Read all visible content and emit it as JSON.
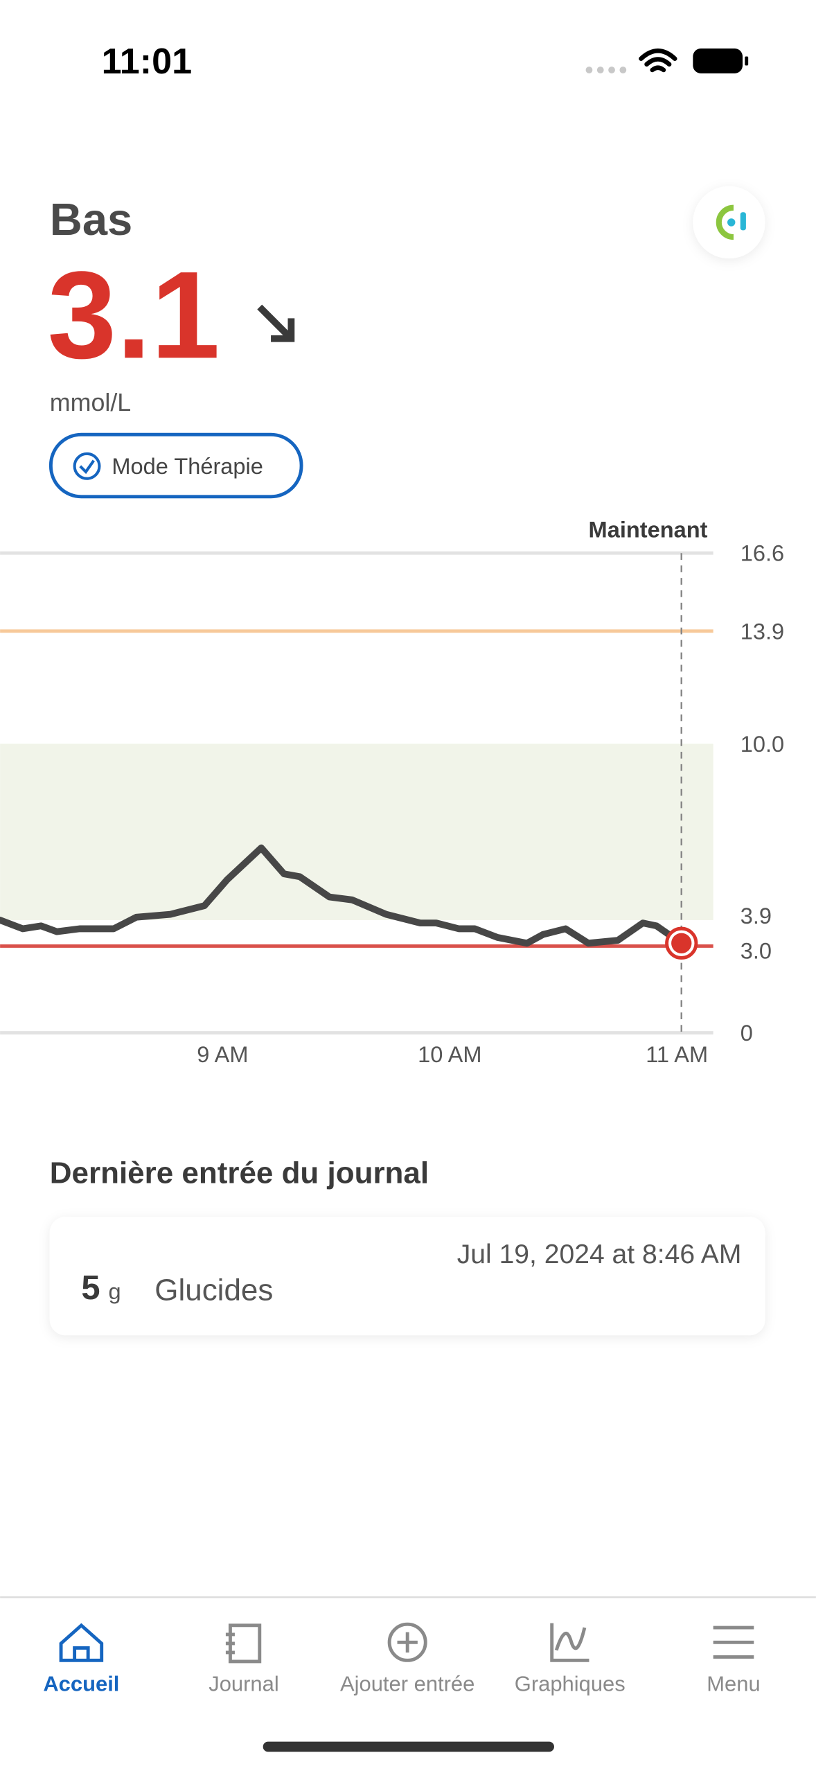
{
  "status_bar": {
    "time": "11:01"
  },
  "header": {
    "status": "Bas",
    "reading": "3.1",
    "unit": "mmol/L",
    "mode": "Mode Thérapie"
  },
  "chart_data": {
    "type": "line",
    "now_label": "Maintenant",
    "x": [
      8.02,
      8.12,
      8.2,
      8.27,
      8.37,
      8.52,
      8.62,
      8.77,
      8.92,
      9.02,
      9.17,
      9.27,
      9.34,
      9.47,
      9.57,
      9.72,
      9.87,
      9.94,
      10.04,
      10.11,
      10.21,
      10.34,
      10.41,
      10.51,
      10.61,
      10.74,
      10.85,
      10.91,
      11.02
    ],
    "series": [
      {
        "color": "#474747",
        "values": [
          3.9,
          3.6,
          3.7,
          3.5,
          3.6,
          3.6,
          4.0,
          4.1,
          4.4,
          5.3,
          6.4,
          5.5,
          5.4,
          4.7,
          4.6,
          4.1,
          3.8,
          3.8,
          3.6,
          3.6,
          3.3,
          3.1,
          3.4,
          3.6,
          3.1,
          3.2,
          3.8,
          3.7,
          3.1
        ]
      }
    ],
    "xlim": [
      8.02,
      11.16
    ],
    "xticks": [
      {
        "value": 9,
        "label": "9 AM"
      },
      {
        "value": 10,
        "label": "10 AM"
      },
      {
        "value": 11,
        "label": "11 AM"
      }
    ],
    "ylim": [
      0,
      16.6
    ],
    "yticks": [
      0,
      {
        "value": 3,
        "label": "3.0"
      },
      3.9,
      {
        "value": 10,
        "label": "10.0"
      },
      13.9,
      16.6
    ],
    "target_range": [
      3.9,
      10
    ],
    "target_color": "#f1f4e9",
    "high_limit": 13.9,
    "high_color": "#f7c99a",
    "low_limit": 3,
    "low_color": "#d9504a",
    "now": 11.02
  },
  "journal": {
    "title": "Dernière entrée du journal",
    "entry": {
      "date": "Jul 19, 2024 at 8:46 AM",
      "amount": "5",
      "unit": "g",
      "type": "Glucides"
    }
  },
  "nav": {
    "items": [
      "Accueil",
      "Journal",
      "Ajouter entrée",
      "Graphiques",
      "Menu"
    ]
  }
}
